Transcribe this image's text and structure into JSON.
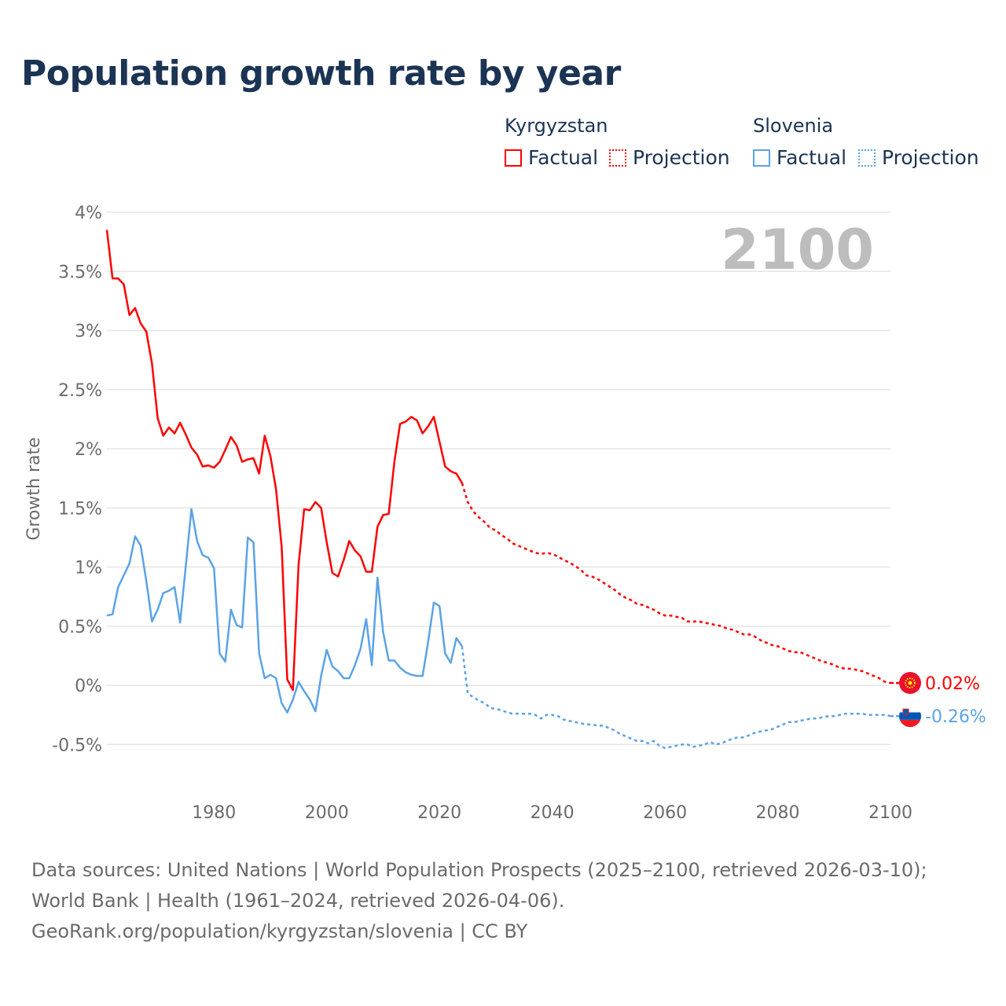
{
  "title": "Population growth rate by year",
  "legend": {
    "groups": [
      {
        "country": "Kyrgyzstan",
        "factual": "Factual",
        "projection": "Projection",
        "color": "#ff0000"
      },
      {
        "country": "Slovenia",
        "factual": "Factual",
        "projection": "Projection",
        "color": "#5ba3e6"
      }
    ]
  },
  "source": {
    "line1": "Data sources: United Nations | World Population Prospects (2025–2100, retrieved 2026-03-10); World Bank | Health (1961–2024, retrieved 2026-04-06).",
    "line2": "GeoRank.org/population/kyrgyzstan/slovenia | CC BY"
  },
  "chart_data": {
    "type": "line",
    "title": "Population growth rate by year",
    "ylabel": "Growth rate",
    "xlabel": "",
    "year_watermark": "2100",
    "xlim": [
      1961,
      2100
    ],
    "ylim": [
      -0.8,
      4.0
    ],
    "x_ticks": [
      "1980",
      "2000",
      "2020",
      "2040",
      "2060",
      "2080",
      "2100"
    ],
    "x_tick_values": [
      1980,
      2000,
      2020,
      2040,
      2060,
      2080,
      2100
    ],
    "y_ticks": [
      "4%",
      "3.5%",
      "3%",
      "2.5%",
      "2%",
      "1.5%",
      "1%",
      "0.5%",
      "0%",
      "-0.5%"
    ],
    "y_tick_values": [
      4,
      3.5,
      3,
      2.5,
      2,
      1.5,
      1,
      0.5,
      0,
      -0.5
    ],
    "grid": true,
    "legend_position": "top-right",
    "series": [
      {
        "name": "Kyrgyzstan",
        "color": "#ff0000",
        "end_label": "0.02%",
        "factual_start": 1961,
        "factual": [
          3.85,
          3.44,
          3.44,
          3.39,
          3.13,
          3.19,
          3.06,
          2.99,
          2.72,
          2.26,
          2.11,
          2.18,
          2.13,
          2.22,
          2.12,
          2.01,
          1.95,
          1.85,
          1.86,
          1.84,
          1.89,
          1.99,
          2.1,
          2.03,
          1.89,
          1.91,
          1.92,
          1.79,
          2.11,
          1.94,
          1.66,
          1.17,
          0.05,
          -0.04,
          1.02,
          1.49,
          1.48,
          1.55,
          1.5,
          1.21,
          0.95,
          0.92,
          1.06,
          1.22,
          1.14,
          1.09,
          0.96,
          0.96,
          1.34,
          1.44,
          1.45,
          1.89,
          2.21,
          2.23,
          2.27,
          2.24,
          2.13,
          2.19,
          2.27,
          2.06,
          1.85,
          1.81,
          1.79,
          1.71
        ],
        "projection_start": 2024,
        "projection": [
          1.71,
          1.55,
          1.47,
          1.42,
          1.38,
          1.33,
          1.31,
          1.27,
          1.24,
          1.2,
          1.18,
          1.16,
          1.14,
          1.12,
          1.11,
          1.12,
          1.11,
          1.09,
          1.06,
          1.04,
          1.01,
          0.98,
          0.93,
          0.92,
          0.9,
          0.87,
          0.84,
          0.81,
          0.77,
          0.74,
          0.72,
          0.69,
          0.68,
          0.66,
          0.64,
          0.61,
          0.59,
          0.59,
          0.58,
          0.57,
          0.54,
          0.54,
          0.54,
          0.53,
          0.52,
          0.51,
          0.5,
          0.48,
          0.47,
          0.45,
          0.43,
          0.43,
          0.41,
          0.38,
          0.36,
          0.34,
          0.33,
          0.31,
          0.29,
          0.28,
          0.28,
          0.26,
          0.24,
          0.22,
          0.2,
          0.19,
          0.17,
          0.15,
          0.14,
          0.14,
          0.13,
          0.12,
          0.1,
          0.08,
          0.06,
          0.03,
          0.02
        ]
      },
      {
        "name": "Slovenia",
        "color": "#5ba3e6",
        "end_label": "-0.26%",
        "factual_start": 1961,
        "factual": [
          0.59,
          0.6,
          0.83,
          0.93,
          1.03,
          1.26,
          1.18,
          0.88,
          0.54,
          0.64,
          0.78,
          0.8,
          0.83,
          0.53,
          1.01,
          1.49,
          1.22,
          1.1,
          1.08,
          0.99,
          0.27,
          0.2,
          0.64,
          0.51,
          0.49,
          1.25,
          1.21,
          0.27,
          0.06,
          0.09,
          0.06,
          -0.15,
          -0.23,
          -0.12,
          0.03,
          -0.05,
          -0.12,
          -0.22,
          0.08,
          0.3,
          0.16,
          0.12,
          0.06,
          0.06,
          0.17,
          0.31,
          0.56,
          0.17,
          0.91,
          0.45,
          0.21,
          0.21,
          0.15,
          0.11,
          0.09,
          0.08,
          0.08,
          0.37,
          0.7,
          0.67,
          0.27,
          0.19,
          0.4,
          0.33
        ],
        "projection_start": 2024,
        "projection": [
          0.33,
          -0.07,
          -0.1,
          -0.13,
          -0.15,
          -0.19,
          -0.2,
          -0.21,
          -0.23,
          -0.24,
          -0.24,
          -0.24,
          -0.24,
          -0.25,
          -0.28,
          -0.25,
          -0.25,
          -0.26,
          -0.29,
          -0.3,
          -0.31,
          -0.32,
          -0.33,
          -0.33,
          -0.34,
          -0.34,
          -0.36,
          -0.38,
          -0.41,
          -0.43,
          -0.45,
          -0.47,
          -0.47,
          -0.49,
          -0.47,
          -0.51,
          -0.53,
          -0.52,
          -0.51,
          -0.5,
          -0.5,
          -0.52,
          -0.51,
          -0.5,
          -0.48,
          -0.5,
          -0.49,
          -0.47,
          -0.45,
          -0.44,
          -0.44,
          -0.42,
          -0.4,
          -0.39,
          -0.38,
          -0.37,
          -0.35,
          -0.33,
          -0.31,
          -0.31,
          -0.3,
          -0.29,
          -0.28,
          -0.28,
          -0.27,
          -0.26,
          -0.26,
          -0.25,
          -0.24,
          -0.24,
          -0.24,
          -0.24,
          -0.25,
          -0.25,
          -0.25,
          -0.25,
          -0.26
        ]
      }
    ]
  }
}
